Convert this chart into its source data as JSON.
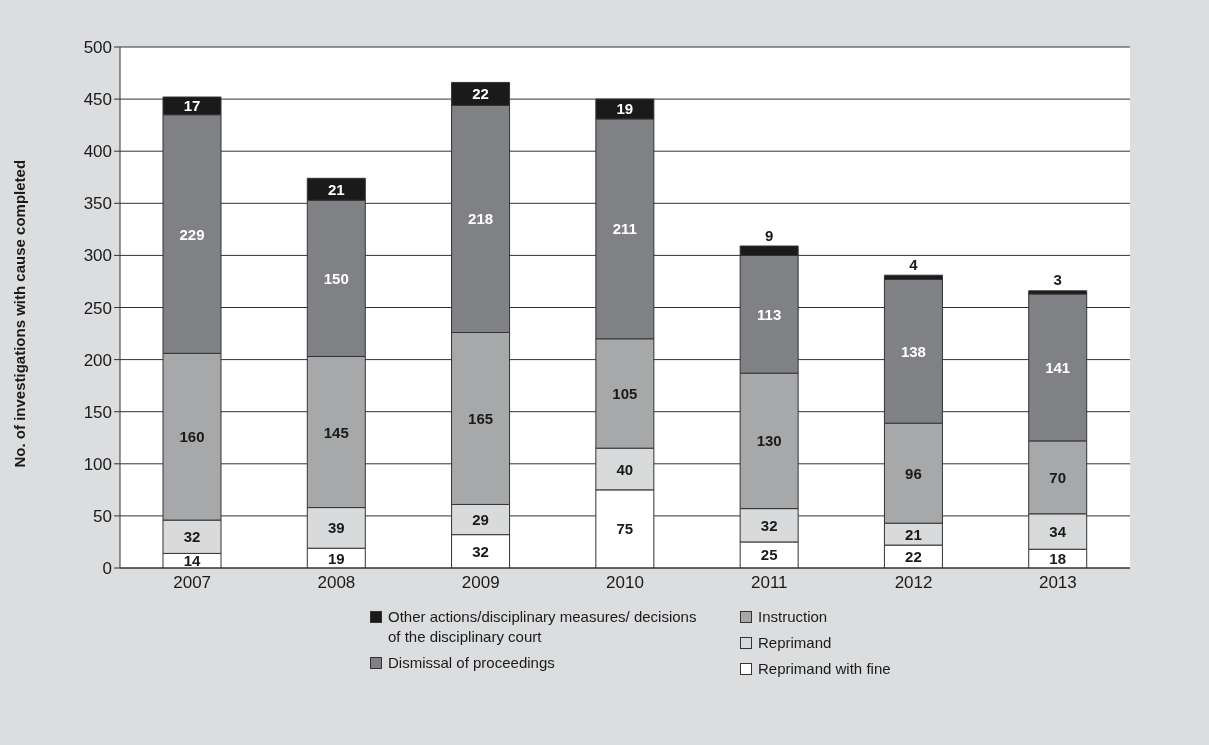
{
  "chart_data": {
    "type": "bar",
    "stacked": true,
    "ylabel": "No. of investigations with cause completed",
    "categories": [
      "2007",
      "2008",
      "2009",
      "2010",
      "2011",
      "2012",
      "2013"
    ],
    "series": [
      {
        "name": "Reprimand with fine",
        "color": "#ffffff",
        "values": [
          14,
          19,
          32,
          75,
          25,
          22,
          18
        ]
      },
      {
        "name": "Reprimand",
        "color": "#d9dadb",
        "values": [
          32,
          39,
          29,
          40,
          32,
          21,
          34
        ]
      },
      {
        "name": "Instruction",
        "color": "#a7a8aa",
        "values": [
          160,
          145,
          165,
          105,
          130,
          96,
          70
        ]
      },
      {
        "name": "Dismissal of proceedings",
        "color": "#808184",
        "values": [
          229,
          150,
          218,
          211,
          113,
          138,
          141
        ]
      },
      {
        "name": "Other actions/disciplinary measures/ decisions of the disciplinary court",
        "color": "#1a1a1a",
        "values": [
          17,
          21,
          22,
          19,
          9,
          4,
          3
        ]
      }
    ],
    "ylim": [
      0,
      500
    ],
    "yticks": [
      0,
      50,
      100,
      150,
      200,
      250,
      300,
      350,
      400,
      450,
      500
    ],
    "grid": "y",
    "legend": "bottom",
    "data_labels": true
  }
}
